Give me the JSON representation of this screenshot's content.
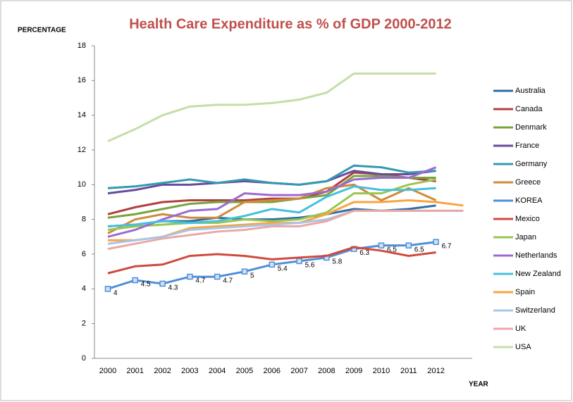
{
  "chart_data": {
    "type": "line",
    "title": "Health Care Expenditure as % of GDP 2000-2012",
    "y_label": "PERCENTAGE",
    "x_label": "YEAR",
    "categories": [
      "2000",
      "2001",
      "2002",
      "2003",
      "2004",
      "2005",
      "2006",
      "2007",
      "2008",
      "2009",
      "2010",
      "2011",
      "2012",
      null
    ],
    "ylim": [
      0,
      18
    ],
    "yticks": [
      0,
      2,
      4,
      6,
      8,
      10,
      12,
      14,
      16,
      18
    ],
    "grid": false,
    "legend": "right",
    "series": [
      {
        "name": "Australia",
        "color": "#2e6da4",
        "values": [
          7.6,
          7.7,
          7.9,
          7.9,
          8.1,
          8.0,
          8.0,
          8.1,
          8.3,
          8.6,
          8.5,
          8.6,
          8.8,
          null
        ]
      },
      {
        "name": "Canada",
        "color": "#b0403d",
        "values": [
          8.3,
          8.7,
          9.0,
          9.1,
          9.1,
          9.1,
          9.2,
          9.2,
          9.6,
          10.7,
          10.6,
          10.4,
          10.2,
          null
        ]
      },
      {
        "name": "Denmark",
        "color": "#78a33e",
        "values": [
          8.1,
          8.3,
          8.6,
          8.9,
          9.0,
          9.0,
          9.0,
          9.2,
          9.4,
          10.5,
          10.5,
          10.4,
          10.4,
          null
        ]
      },
      {
        "name": "France",
        "color": "#6a4a9c",
        "values": [
          9.5,
          9.7,
          10.0,
          10.0,
          10.1,
          10.2,
          10.1,
          10.0,
          10.2,
          10.8,
          10.6,
          10.6,
          10.8,
          null
        ]
      },
      {
        "name": "Germany",
        "color": "#3399b0",
        "values": [
          9.8,
          9.9,
          10.1,
          10.3,
          10.1,
          10.3,
          10.1,
          10.0,
          10.2,
          11.1,
          11.0,
          10.7,
          10.8,
          null
        ]
      },
      {
        "name": "Greece",
        "color": "#d08a3a",
        "values": [
          7.2,
          8.0,
          8.3,
          8.1,
          8.1,
          9.0,
          9.1,
          9.2,
          9.8,
          10.0,
          9.1,
          9.8,
          9.1,
          null
        ]
      },
      {
        "name": "KOREA",
        "color": "#4f8fd8",
        "markers": true,
        "values": [
          4,
          4.5,
          4.3,
          4.7,
          4.7,
          5,
          5.4,
          5.6,
          5.8,
          6.3,
          6.5,
          6.5,
          6.7,
          null
        ]
      },
      {
        "name": "Mexico",
        "color": "#d04a3f",
        "values": [
          4.9,
          5.3,
          5.4,
          5.9,
          6.0,
          5.9,
          5.7,
          5.8,
          5.9,
          6.4,
          6.2,
          5.9,
          6.1,
          null
        ]
      },
      {
        "name": "Japan",
        "color": "#9bc550",
        "values": [
          7.4,
          7.6,
          7.7,
          7.8,
          7.8,
          8.0,
          7.9,
          8.0,
          8.4,
          9.5,
          9.5,
          10.0,
          10.3,
          null
        ]
      },
      {
        "name": "Netherlands",
        "color": "#9b6ad0",
        "values": [
          7.0,
          7.4,
          8.0,
          8.5,
          8.6,
          9.5,
          9.4,
          9.4,
          9.6,
          10.3,
          10.4,
          10.4,
          11.0,
          null
        ]
      },
      {
        "name": "New Zealand",
        "color": "#45c0dd",
        "values": [
          7.6,
          7.7,
          7.9,
          7.8,
          7.9,
          8.2,
          8.6,
          8.4,
          9.3,
          9.9,
          9.7,
          9.7,
          9.8,
          null
        ]
      },
      {
        "name": "Spain",
        "color": "#f9a43f",
        "values": [
          6.8,
          6.8,
          7.0,
          7.5,
          7.6,
          7.7,
          7.8,
          7.8,
          8.3,
          9.0,
          9.0,
          9.1,
          9.0,
          8.8
        ]
      },
      {
        "name": "Switzerland",
        "color": "#a8c4ea",
        "values": [
          6.6,
          6.8,
          7.0,
          7.4,
          7.5,
          7.6,
          7.7,
          7.8,
          8.0,
          8.5,
          8.5,
          8.5,
          8.5,
          8.5
        ]
      },
      {
        "name": "UK",
        "color": "#e8a9a5",
        "values": [
          6.3,
          6.6,
          6.9,
          7.1,
          7.3,
          7.4,
          7.6,
          7.6,
          7.9,
          8.5,
          8.5,
          8.5,
          8.5,
          8.5
        ]
      },
      {
        "name": "USA",
        "color": "#c4dea6",
        "values": [
          12.5,
          13.2,
          14.0,
          14.5,
          14.6,
          14.6,
          14.7,
          14.9,
          15.3,
          16.4,
          16.4,
          16.4,
          16.4,
          null
        ]
      }
    ]
  }
}
